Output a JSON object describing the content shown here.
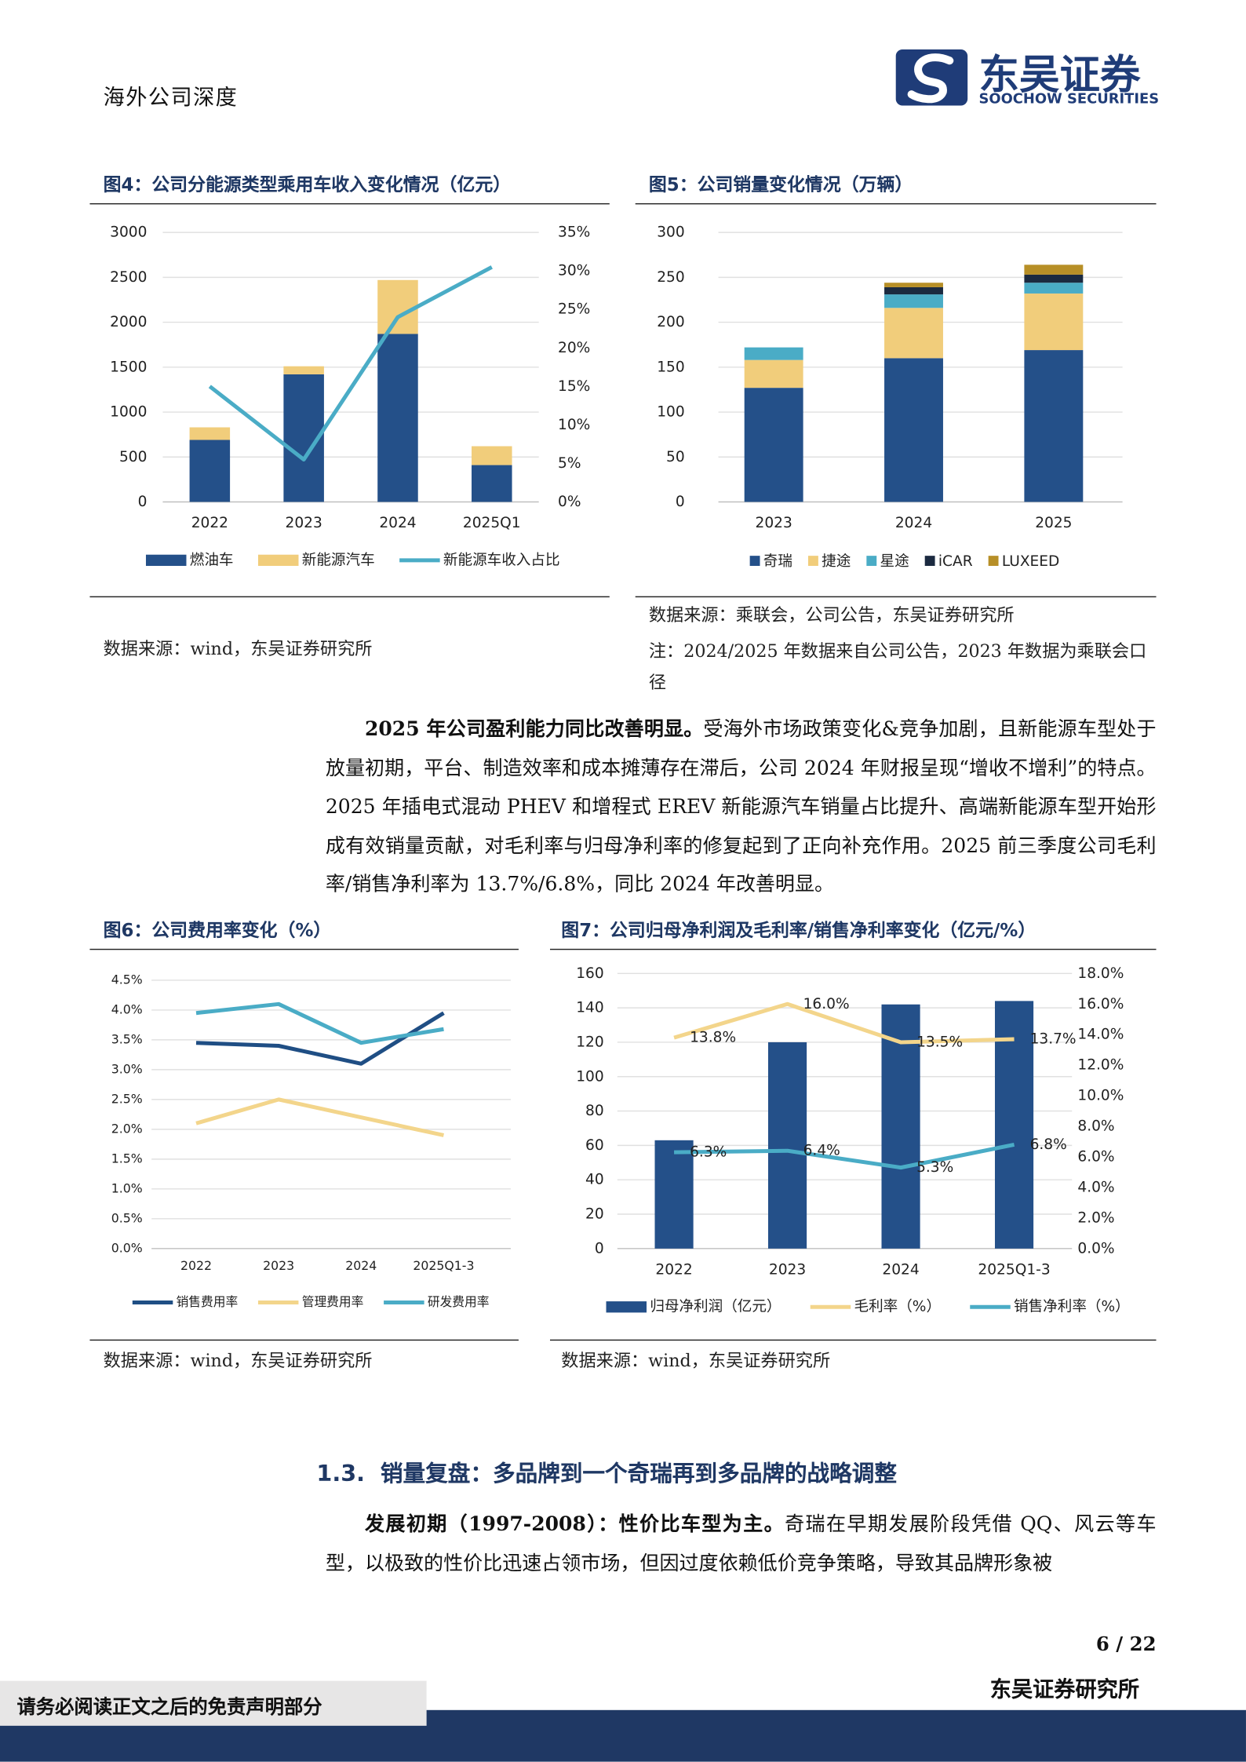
{
  "header": {
    "title": "海外公司深度",
    "logo_cn": "东吴证券",
    "logo_en": "SOOCHOW SECURITIES"
  },
  "chart_data": [
    {
      "type": "combo",
      "title": "图4：公司分能源类型乘用车收入变化情况（亿元）",
      "source": "数据来源：wind，东吴证券研究所",
      "stacked": true,
      "grid": true,
      "categories": [
        "2022",
        "2023",
        "2024",
        "2025Q1"
      ],
      "series": [
        {
          "name": "燃油车",
          "type": "bar",
          "color": "#245089",
          "values": [
            690,
            1420,
            1870,
            410
          ]
        },
        {
          "name": "新能源汽车",
          "type": "bar",
          "color": "#f1cd7b",
          "values": [
            140,
            90,
            600,
            210
          ]
        },
        {
          "name": "新能源车收入占比",
          "type": "line",
          "axis": "y2",
          "color": "#4aacc6",
          "values": [
            15,
            5.5,
            24,
            30.5
          ]
        }
      ],
      "ylim": [
        0,
        3000
      ],
      "yticks": [
        0,
        500,
        1000,
        1500,
        2000,
        2500,
        3000
      ],
      "y2lim": [
        0,
        35
      ],
      "y2ticks": [
        {
          "value": 0,
          "label": "0%"
        },
        {
          "value": 5,
          "label": "5%"
        },
        {
          "value": 10,
          "label": "10%"
        },
        {
          "value": 15,
          "label": "15%"
        },
        {
          "value": 20,
          "label": "20%"
        },
        {
          "value": 25,
          "label": "25%"
        },
        {
          "value": 30,
          "label": "30%"
        },
        {
          "value": 35,
          "label": "35%"
        }
      ]
    },
    {
      "type": "bar",
      "title": "图5：公司销量变化情况（万辆）",
      "source": "数据来源：乘联会，公司公告，东吴证券研究所",
      "note": "注：2024/2025 年数据来自公司公告，2023 年数据为乘联会口径",
      "stacked": true,
      "grid": true,
      "categories": [
        "2023",
        "2024",
        "2025"
      ],
      "series": [
        {
          "name": "奇瑞",
          "color": "#245089",
          "values": [
            127,
            160,
            169
          ]
        },
        {
          "name": "捷途",
          "color": "#f1cd7b",
          "values": [
            31,
            56,
            63
          ]
        },
        {
          "name": "星途",
          "color": "#4aacc6",
          "values": [
            14,
            15,
            12
          ]
        },
        {
          "name": "iCAR",
          "color": "#1b2a40",
          "values": [
            0,
            8,
            9
          ]
        },
        {
          "name": "LUXEED",
          "color": "#b78f27",
          "values": [
            0,
            5,
            11
          ]
        }
      ],
      "ylim": [
        0,
        300
      ],
      "yticks": [
        0,
        50,
        100,
        150,
        200,
        250,
        300
      ]
    },
    {
      "type": "line",
      "title": "图6：公司费用率变化（%）",
      "source": "数据来源：wind，东吴证券研究所",
      "grid": true,
      "categories": [
        "2022",
        "2023",
        "2024",
        "2025Q1-3"
      ],
      "series": [
        {
          "name": "销售费用率",
          "color": "#1f4e84",
          "values": [
            3.45,
            3.4,
            3.1,
            3.95
          ]
        },
        {
          "name": "管理费用率",
          "color": "#f3d58b",
          "values": [
            2.1,
            2.5,
            2.2,
            1.9
          ]
        },
        {
          "name": "研发费用率",
          "color": "#4aacc6",
          "values": [
            3.95,
            4.1,
            3.45,
            3.68
          ]
        }
      ],
      "ylim": [
        0,
        4.5
      ],
      "yticks": [
        {
          "value": 0,
          "label": "0.0%"
        },
        {
          "value": 0.5,
          "label": "0.5%"
        },
        {
          "value": 1,
          "label": "1.0%"
        },
        {
          "value": 1.5,
          "label": "1.5%"
        },
        {
          "value": 2,
          "label": "2.0%"
        },
        {
          "value": 2.5,
          "label": "2.5%"
        },
        {
          "value": 3,
          "label": "3.0%"
        },
        {
          "value": 3.5,
          "label": "3.5%"
        },
        {
          "value": 4,
          "label": "4.0%"
        },
        {
          "value": 4.5,
          "label": "4.5%"
        }
      ]
    },
    {
      "type": "combo",
      "title": "图7：公司归母净利润及毛利率/销售净利率变化（亿元/%）",
      "source": "数据来源：wind，东吴证券研究所",
      "grid": true,
      "categories": [
        "2022",
        "2023",
        "2024",
        "2025Q1-3"
      ],
      "series": [
        {
          "name": "归母净利润（亿元）",
          "type": "bar",
          "color": "#245089",
          "values": [
            63,
            120,
            142,
            144
          ]
        },
        {
          "name": "毛利率（%）",
          "type": "line",
          "axis": "y2",
          "color": "#f3d58b",
          "values": [
            13.8,
            16.0,
            13.5,
            13.7
          ],
          "value_labels": [
            "13.8%",
            "16.0%",
            "13.5%",
            "13.7%"
          ]
        },
        {
          "name": "销售净利率（%）",
          "type": "line",
          "axis": "y2",
          "color": "#4aacc6",
          "values": [
            6.3,
            6.4,
            5.3,
            6.8
          ],
          "value_labels": [
            "6.3%",
            "6.4%",
            "5.3%",
            "6.8%"
          ]
        }
      ],
      "ylim": [
        0,
        160
      ],
      "yticks": [
        0,
        20,
        40,
        60,
        80,
        100,
        120,
        140,
        160
      ],
      "y2lim": [
        0,
        18
      ],
      "y2ticks": [
        {
          "value": 0,
          "label": "0.0%"
        },
        {
          "value": 2,
          "label": "2.0%"
        },
        {
          "value": 4,
          "label": "4.0%"
        },
        {
          "value": 6,
          "label": "6.0%"
        },
        {
          "value": 8,
          "label": "8.0%"
        },
        {
          "value": 10,
          "label": "10.0%"
        },
        {
          "value": 12,
          "label": "12.0%"
        },
        {
          "value": 14,
          "label": "14.0%"
        },
        {
          "value": 16,
          "label": "16.0%"
        },
        {
          "value": 18,
          "label": "18.0%"
        }
      ]
    }
  ],
  "paragraphs": [
    {
      "lead": "2025 年公司盈利能力同比改善明显。",
      "text": "受海外市场政策变化&竞争加剧，且新能源车型处于放量初期，平台、制造效率和成本摊薄存在滞后，公司 2024 年财报呈现“增收不增利”的特点。2025 年插电式混动 PHEV 和增程式 EREV 新能源汽车销量占比提升、高端新能源车型开始形成有效销量贡献，对毛利率与归母净利率的修复起到了正向补充作用。2025 前三季度公司毛利率/销售净利率为 13.7%/6.8%，同比 2024 年改善明显。"
    },
    {
      "lead": "发展初期（1997-2008）：性价比车型为主。",
      "text": "奇瑞在早期发展阶段凭借 QQ、风云等车型，以极致的性价比迅速占领市场，但因过度依赖低价竞争策略，导致其品牌形象被"
    }
  ],
  "section": {
    "number": "1.3.",
    "title": "销量复盘：多品牌到一个奇瑞再到多品牌的战略调整"
  },
  "footer": {
    "page": "6 / 22",
    "org": "东吴证券研究所",
    "disclaimer": "请务必阅读正文之后的免责声明部分"
  }
}
